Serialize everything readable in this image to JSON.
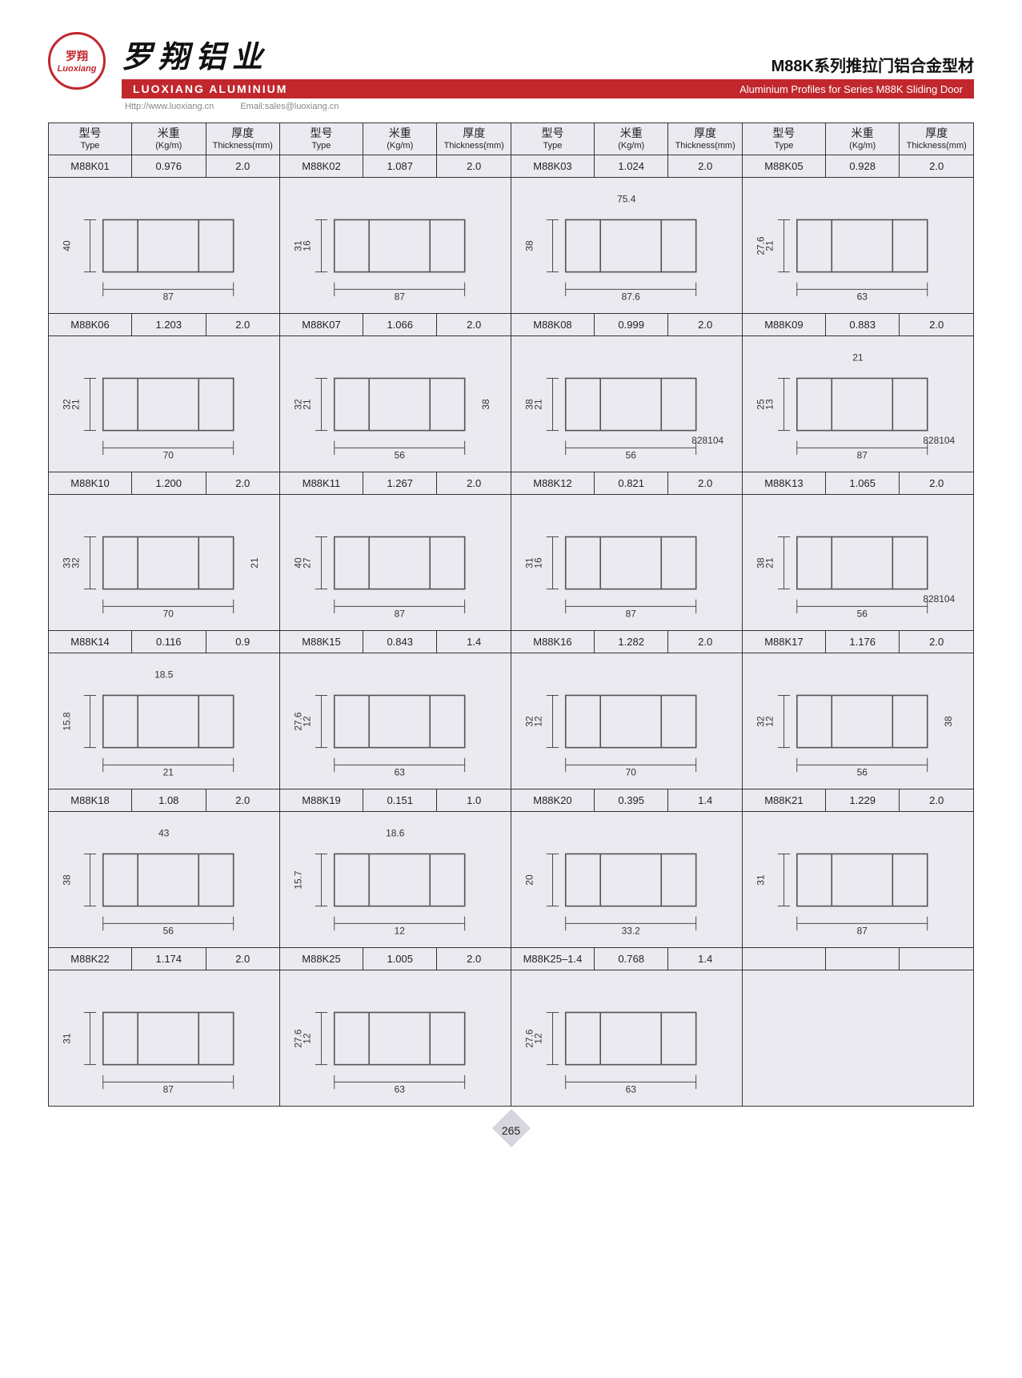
{
  "brand": {
    "logo_cn": "罗翔",
    "logo_en": "Luoxiang",
    "name_cn": "罗翔铝业",
    "bar_en": "LUOXIANG ALUMINIUM",
    "url": "Http://www.luoxiang.cn",
    "email": "Email:sales@luoxiang.cn"
  },
  "page_title": {
    "cn": "M88K系列推拉门铝合金型材",
    "en": "Aluminium Profiles for Series M88K Sliding Door"
  },
  "columns": {
    "type": {
      "cn": "型号",
      "en": "Type"
    },
    "weight": {
      "cn": "米重",
      "en": "(Kg/m)"
    },
    "thickness": {
      "cn": "厚度",
      "en": "Thickness(mm)"
    }
  },
  "profiles": [
    [
      {
        "type": "M88K01",
        "w": "0.976",
        "t": "2.0",
        "dims": {
          "w": "87",
          "h": "40"
        }
      },
      {
        "type": "M88K02",
        "w": "1.087",
        "t": "2.0",
        "dims": {
          "w": "87",
          "h": "31",
          "h2": "16"
        }
      },
      {
        "type": "M88K03",
        "w": "1.024",
        "t": "2.0",
        "dims": {
          "w": "87.6",
          "w2": "75.4",
          "h": "38"
        }
      },
      {
        "type": "M88K05",
        "w": "0.928",
        "t": "2.0",
        "dims": {
          "w": "63",
          "h": "27.6",
          "h2": "21"
        }
      }
    ],
    [
      {
        "type": "M88K06",
        "w": "1.203",
        "t": "2.0",
        "dims": {
          "w": "70",
          "h": "32",
          "h2": "21"
        }
      },
      {
        "type": "M88K07",
        "w": "1.066",
        "t": "2.0",
        "dims": {
          "w": "56",
          "h": "32",
          "h2": "21",
          "h3": "38"
        }
      },
      {
        "type": "M88K08",
        "w": "0.999",
        "t": "2.0",
        "dims": {
          "w": "56",
          "h": "38",
          "h2": "21",
          "note": "828104"
        }
      },
      {
        "type": "M88K09",
        "w": "0.883",
        "t": "2.0",
        "dims": {
          "w": "87",
          "w2": "21",
          "h": "25",
          "h2": "13",
          "note": "828104"
        }
      }
    ],
    [
      {
        "type": "M88K10",
        "w": "1.200",
        "t": "2.0",
        "dims": {
          "w": "70",
          "h": "33",
          "h2": "32",
          "h3": "21"
        }
      },
      {
        "type": "M88K11",
        "w": "1.267",
        "t": "2.0",
        "dims": {
          "w": "87",
          "h": "40",
          "h2": "27"
        }
      },
      {
        "type": "M88K12",
        "w": "0.821",
        "t": "2.0",
        "dims": {
          "w": "87",
          "h": "31",
          "h2": "16"
        }
      },
      {
        "type": "M88K13",
        "w": "1.065",
        "t": "2.0",
        "dims": {
          "w": "56",
          "h": "38",
          "h2": "21",
          "note": "828104"
        }
      }
    ],
    [
      {
        "type": "M88K14",
        "w": "0.116",
        "t": "0.9",
        "dims": {
          "w": "21",
          "w2": "18.5",
          "h": "15.8"
        }
      },
      {
        "type": "M88K15",
        "w": "0.843",
        "t": "1.4",
        "dims": {
          "w": "63",
          "h": "27.6",
          "h2": "12"
        }
      },
      {
        "type": "M88K16",
        "w": "1.282",
        "t": "2.0",
        "dims": {
          "w": "70",
          "h": "32",
          "h2": "12"
        }
      },
      {
        "type": "M88K17",
        "w": "1.176",
        "t": "2.0",
        "dims": {
          "w": "56",
          "h": "32",
          "h2": "12",
          "h3": "38"
        }
      }
    ],
    [
      {
        "type": "M88K18",
        "w": "1.08",
        "t": "2.0",
        "dims": {
          "w": "56",
          "w2": "43",
          "h": "38"
        }
      },
      {
        "type": "M88K19",
        "w": "0.151",
        "t": "1.0",
        "dims": {
          "w": "12",
          "w2": "18.6",
          "h": "15.7"
        }
      },
      {
        "type": "M88K20",
        "w": "0.395",
        "t": "1.4",
        "dims": {
          "w": "33.2",
          "h": "20"
        }
      },
      {
        "type": "M88K21",
        "w": "1.229",
        "t": "2.0",
        "dims": {
          "w": "87",
          "h": "31"
        }
      }
    ],
    [
      {
        "type": "M88K22",
        "w": "1.174",
        "t": "2.0",
        "dims": {
          "w": "87",
          "h": "31"
        }
      },
      {
        "type": "M88K25",
        "w": "1.005",
        "t": "2.0",
        "dims": {
          "w": "63",
          "h": "27.6",
          "h2": "12"
        }
      },
      {
        "type": "M88K25–1.4",
        "w": "0.768",
        "t": "1.4",
        "dims": {
          "w": "63",
          "h": "27.6",
          "h2": "12"
        }
      },
      null
    ]
  ],
  "page_number": "265",
  "colors": {
    "brand_red": "#c1272d",
    "cell_bg": "#eceaf1",
    "border": "#333333",
    "text": "#222222"
  }
}
